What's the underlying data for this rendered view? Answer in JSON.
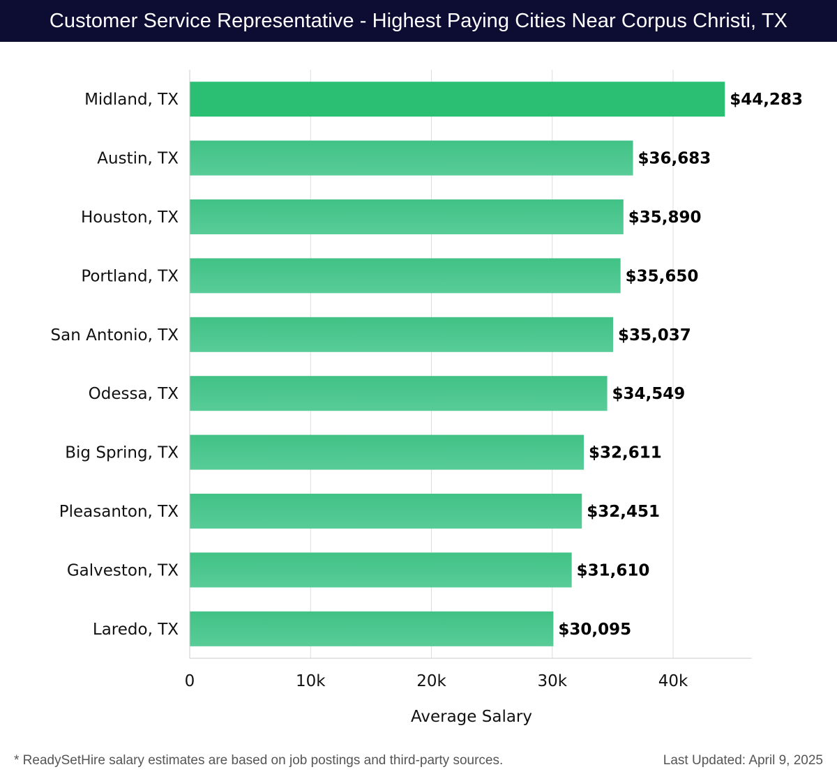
{
  "header": {
    "title": "Customer Service Representative - Highest Paying Cities Near Corpus Christi, TX"
  },
  "chart_data": {
    "type": "bar",
    "orientation": "horizontal",
    "title": "Customer Service Representative - Highest Paying Cities Near Corpus Christi, TX",
    "xlabel": "Average Salary",
    "ylabel": "",
    "xlim": [
      0,
      46500
    ],
    "xticks": [
      0,
      10000,
      20000,
      30000,
      40000
    ],
    "xtick_labels": [
      "0",
      "10k",
      "20k",
      "30k",
      "40k"
    ],
    "grid": true,
    "categories": [
      "Midland, TX",
      "Austin, TX",
      "Houston, TX",
      "Portland, TX",
      "San Antonio, TX",
      "Odessa, TX",
      "Big Spring, TX",
      "Pleasanton, TX",
      "Galveston, TX",
      "Laredo, TX"
    ],
    "values": [
      44283,
      36683,
      35890,
      35650,
      35037,
      34549,
      32611,
      32451,
      31610,
      30095
    ],
    "value_labels": [
      "$44,283",
      "$36,683",
      "$35,890",
      "$35,650",
      "$35,037",
      "$34,549",
      "$32,611",
      "$32,451",
      "$31,610",
      "$30,095"
    ]
  },
  "colors": {
    "header_bg": "#0d0d33",
    "top_bar": "#2bbf74",
    "bar_gradient_start": "#41c285",
    "bar_gradient_end": "#58cc98",
    "grid": "#dddddd"
  },
  "footer": {
    "note": "* ReadySetHire salary estimates are based on job postings and third-party sources.",
    "updated": "Last Updated: April 9, 2025"
  }
}
